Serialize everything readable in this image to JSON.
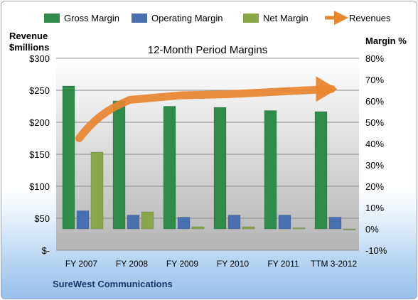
{
  "chart_data": {
    "type": "bar",
    "title": "12-Month Period Margins",
    "categories": [
      "FY 2007",
      "FY 2008",
      "FY 2009",
      "FY 2010",
      "FY 2011",
      "TTM 3-2012"
    ],
    "left_axis_label_line1": "Revenue",
    "left_axis_label_line2": "$millions",
    "right_axis_label": "Margin %",
    "left_ticks": [
      "$-",
      "$50",
      "$100",
      "$150",
      "$200",
      "$250",
      "$300"
    ],
    "right_ticks": [
      "-10%",
      "0%",
      "10%",
      "20%",
      "30%",
      "40%",
      "50%",
      "60%",
      "70%",
      "80%"
    ],
    "ylim_left": [
      0,
      300
    ],
    "ylim_right": [
      -10,
      80
    ],
    "grid": true,
    "legend_position": "top",
    "series": [
      {
        "name": "Gross Margin",
        "axis": "right",
        "color": "#2e8b4a",
        "values": [
          67,
          60,
          57.5,
          57,
          55.5,
          55
        ]
      },
      {
        "name": "Operating Margin",
        "axis": "right",
        "color": "#4a6fb0",
        "values": [
          8.5,
          6.5,
          5.5,
          6.5,
          6.5,
          5.5
        ]
      },
      {
        "name": "Net Margin",
        "axis": "right",
        "color": "#8aa84a",
        "values": [
          36,
          8,
          1,
          1,
          0.5,
          -0.5
        ]
      },
      {
        "name": "Revenues",
        "axis": "left",
        "type": "line",
        "color": "#e8852f",
        "values": [
          175,
          235,
          242,
          244,
          248,
          252
        ]
      }
    ],
    "footer": "SureWest Communications"
  }
}
